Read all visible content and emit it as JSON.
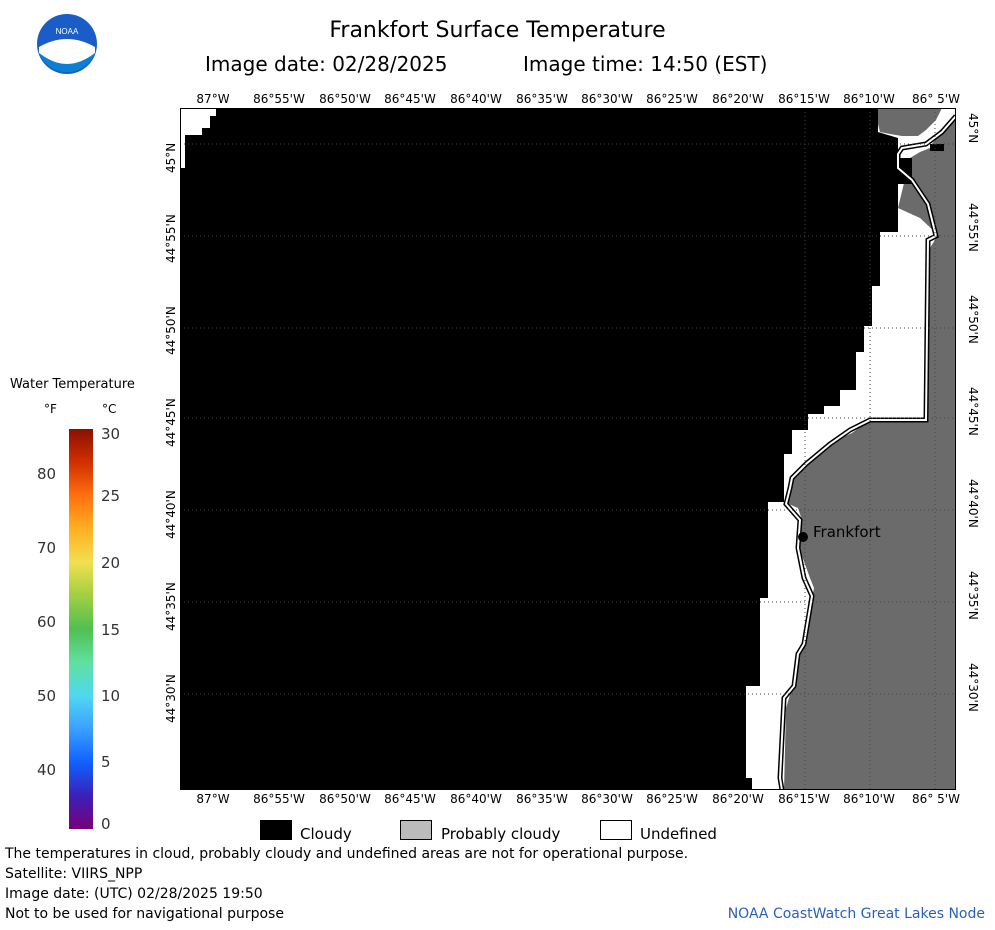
{
  "header": {
    "title": "Frankfort Surface Temperature",
    "image_date": "Image date: 02/28/2025",
    "image_time": "Image time: 14:50 (EST)",
    "logo_text": "NOAA"
  },
  "map": {
    "lon_labels": [
      "87°W",
      "86°55'W",
      "86°50'W",
      "86°45'W",
      "86°40'W",
      "86°35'W",
      "86°30'W",
      "86°25'W",
      "86°20'W",
      "86°15'W",
      "86°10'W",
      "86° 5'W"
    ],
    "lat_labels": [
      "45°N",
      "44°55'N",
      "44°50'N",
      "44°45'N",
      "44°40'N",
      "44°35'N",
      "44°30'N"
    ],
    "place_label": "Frankfort",
    "colors": {
      "cloudy": "#000000",
      "probably_cloudy": "#6b6b6b",
      "undefined": "#ffffff",
      "grid": "#555555"
    }
  },
  "legend": {
    "title": "Water Temperature",
    "unit_f": "°F",
    "unit_c": "°C",
    "f_ticks": [
      "80",
      "70",
      "60",
      "50",
      "40"
    ],
    "c_ticks": [
      "30",
      "25",
      "20",
      "15",
      "10",
      "5",
      "0"
    ]
  },
  "key": {
    "cloudy": "Cloudy",
    "probably_cloudy": "Probably cloudy",
    "undefined": "Undefined"
  },
  "footer": {
    "disclaimer": "The temperatures in cloud, probably cloudy and undefined areas are not for operational purpose.",
    "satellite": "Satellite: VIIRS_NPP",
    "image_date_utc": "Image date: (UTC) 02/28/2025  19:50",
    "navigation": "Not to be used for navigational purpose",
    "credit": "NOAA CoastWatch Great Lakes Node"
  }
}
